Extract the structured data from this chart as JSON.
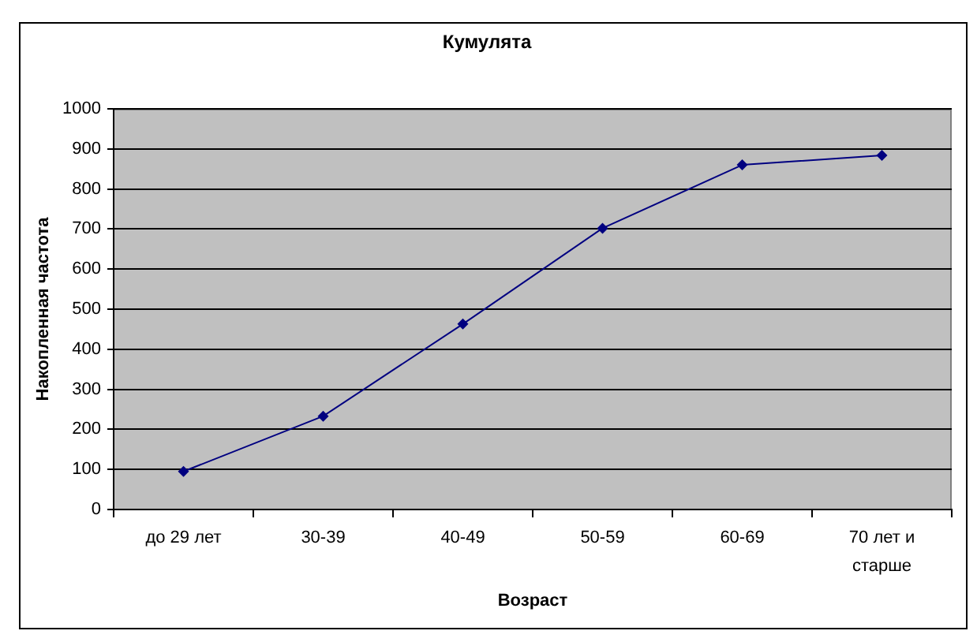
{
  "chart_data": {
    "type": "line",
    "title": "Кумулята",
    "xlabel": "Возраст",
    "ylabel": "Накопленная частота",
    "categories": [
      "до 29 лет",
      "30-39",
      "40-49",
      "50-59",
      "60-69",
      "70 лет и старше"
    ],
    "values": [
      95,
      233,
      463,
      702,
      860,
      884
    ],
    "color": "#000080",
    "ylim": [
      0,
      1000
    ],
    "yticks": [
      0,
      100,
      200,
      300,
      400,
      500,
      600,
      700,
      800,
      900,
      1000
    ],
    "grid": "y",
    "marker": "diamond",
    "line_style": "solid"
  }
}
